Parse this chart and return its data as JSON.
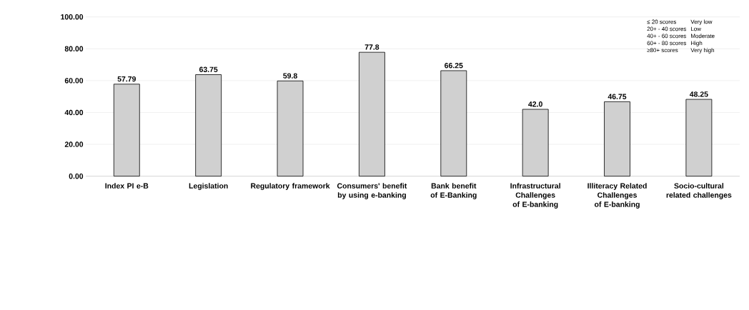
{
  "chart_data": {
    "type": "bar",
    "categories": [
      "Index PI e-B",
      "Legislation",
      "Regulatory framework",
      "Consumers' benefit  by using e-banking",
      "Bank benefit of E-Banking",
      "Infrastructural Challenges of E-banking",
      "Illiteracy Related Challenges of E-banking",
      "Socio-cultural related challenges"
    ],
    "values": [
      57.79,
      63.75,
      59.8,
      77.8,
      66.25,
      42.0,
      46.75,
      48.25
    ],
    "value_labels": [
      "57.79",
      "63.75",
      "59.8",
      "77.8",
      "66.25",
      "42.0",
      "46.75",
      "48.25"
    ],
    "color": "#d0d0d0",
    "ylim": [
      0,
      100
    ],
    "yticks": [
      {
        "value": 0,
        "label": "0.00"
      },
      {
        "value": 20,
        "label": "20.00"
      },
      {
        "value": 40,
        "label": "40.00"
      },
      {
        "value": 60,
        "label": "60.00"
      },
      {
        "value": 80,
        "label": "80.00"
      },
      {
        "value": 100,
        "label": "100.00"
      }
    ],
    "grid": "y",
    "annotations": [
      "≤ 20 scores",
      "Very low",
      "20+ - 40 scores",
      "Low",
      "40+ - 60 scores",
      "Moderate",
      "60+ - 80 scores",
      "High",
      "≥80+ scores",
      "Very high"
    ]
  }
}
